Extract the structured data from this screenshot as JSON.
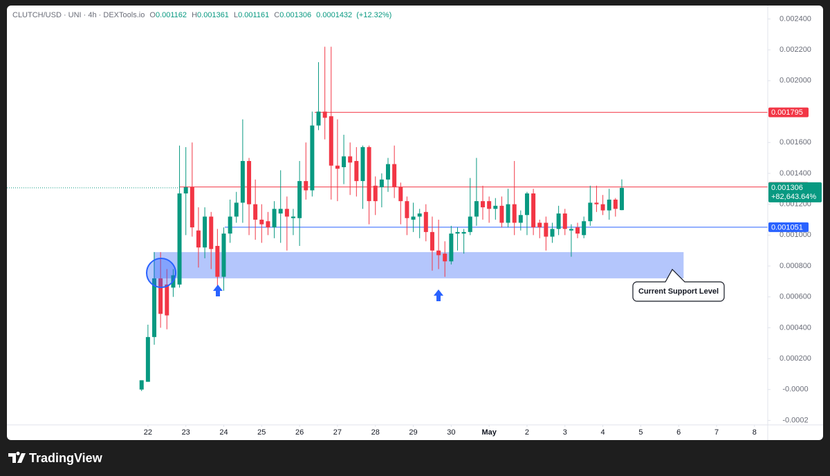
{
  "chart_data": {
    "type": "candlestick",
    "title": "CLUTCH/USD · UNI · 4h · DEXTools.io",
    "header": {
      "o_label": "O",
      "o": "0.001162",
      "h_label": "H",
      "h": "0.001361",
      "l_label": "L",
      "l": "0.001161",
      "c_label": "C",
      "c": "0.001306",
      "change": "0.0001432",
      "change_pct": "(+12.32%)"
    },
    "up_color": "#089981",
    "down_color": "#f23645",
    "grid": false,
    "x": [
      21.833,
      22,
      22.167,
      22.333,
      22.5,
      22.667,
      22.833,
      23,
      23.167,
      23.333,
      23.5,
      23.667,
      23.833,
      24,
      24.167,
      24.333,
      24.5,
      24.667,
      24.833,
      25,
      25.167,
      25.333,
      25.5,
      25.667,
      25.833,
      26,
      26.167,
      26.333,
      26.5,
      26.667,
      26.833,
      27,
      27.167,
      27.333,
      27.5,
      27.667,
      27.833,
      28,
      28.167,
      28.333,
      28.5,
      28.667,
      28.833,
      29,
      29.167,
      29.333,
      29.5,
      29.667,
      29.833,
      30,
      30.167,
      30.333,
      30.5,
      30.667,
      30.833,
      31,
      31.167,
      31.333,
      31.5,
      31.667,
      31.833,
      32,
      32.167,
      32.333,
      32.5,
      32.667,
      32.833,
      33,
      33.167,
      33.333,
      33.5,
      33.667,
      33.833,
      34,
      34.167,
      34.333,
      34.5
    ],
    "open": [
      0,
      5e-05,
      0.00034,
      0.00072,
      0.00068,
      0.00066,
      0.00068,
      0.00127,
      0.00131,
      0.00103,
      0.00092,
      0.00112,
      0.00093,
      0.00073,
      0.00101,
      0.00112,
      0.00121,
      0.00148,
      0.0012,
      0.0011,
      0.00109,
      0.00105,
      0.00114,
      0.00117,
      0.00111,
      0.00111,
      0.00135,
      0.00129,
      0.00171,
      0.0018,
      0.00177,
      0.00145,
      0.00144,
      0.00151,
      0.00148,
      0.00135,
      0.00157,
      0.00132,
      0.00131,
      0.00136,
      0.00146,
      0.00131,
      0.00122,
      0.0011,
      0.00112,
      0.00115,
      0.00102,
      0.0009,
      0.00088,
      0.00083,
      0.00101,
      0.00101,
      0.00102,
      0.00112,
      0.00122,
      0.00122,
      0.00117,
      0.00119,
      0.00108,
      0.0012,
      0.00108,
      0.00113,
      0.00127,
      0.00108,
      0.00108,
      0.00099,
      0.00104,
      0.00114,
      0.00103,
      0.00105,
      0.001,
      0.00109,
      0.00121,
      0.0012,
      0.00116,
      0.00123,
      0.001162
    ],
    "high": [
      6e-05,
      0.00042,
      0.00089,
      0.00089,
      0.00078,
      0.00078,
      0.00158,
      0.00157,
      0.0016,
      0.00118,
      0.00118,
      0.00115,
      0.00104,
      0.00105,
      0.00123,
      0.00128,
      0.00175,
      0.0015,
      0.00136,
      0.0012,
      0.00115,
      0.00122,
      0.00142,
      0.00125,
      0.00117,
      0.00148,
      0.0016,
      0.0018,
      0.00212,
      0.00222,
      0.00222,
      0.00175,
      0.00165,
      0.0016,
      0.00157,
      0.00158,
      0.00158,
      0.00138,
      0.0014,
      0.0015,
      0.00158,
      0.00134,
      0.00125,
      0.00121,
      0.00117,
      0.0012,
      0.00112,
      0.0011,
      0.00096,
      0.00106,
      0.00105,
      0.00104,
      0.00137,
      0.0015,
      0.00132,
      0.00125,
      0.00124,
      0.00125,
      0.0013,
      0.00148,
      0.00116,
      0.00128,
      0.0013,
      0.0011,
      0.00112,
      0.00108,
      0.00119,
      0.00117,
      0.00107,
      0.00108,
      0.00112,
      0.00132,
      0.00132,
      0.00126,
      0.0013,
      0.00124,
      0.001361
    ],
    "low": [
      -1e-05,
      5e-05,
      0.00029,
      0.0004,
      0.00039,
      0.0006,
      0.00066,
      0.001,
      0.00099,
      0.00079,
      0.00085,
      0.00078,
      0.00063,
      0.00064,
      0.00095,
      0.00108,
      0.00108,
      0.001,
      0.00097,
      0.00095,
      0.001,
      0.00098,
      0.00095,
      0.0009,
      0.001,
      0.00093,
      0.00123,
      0.00125,
      0.00168,
      0.00162,
      0.00123,
      0.00122,
      0.00133,
      0.00126,
      0.00125,
      0.00117,
      0.00107,
      0.00113,
      0.00118,
      0.00128,
      0.00124,
      0.00107,
      0.001,
      0.00102,
      0.00098,
      0.00096,
      0.00077,
      0.00078,
      0.00073,
      0.00081,
      0.0009,
      0.00088,
      0.001,
      0.00106,
      0.0011,
      0.00108,
      0.0011,
      0.00105,
      0.00105,
      0.001,
      0.00103,
      0.001,
      0.001,
      0.00098,
      0.0009,
      0.00095,
      0.001,
      0.001,
      0.00086,
      0.00098,
      0.00098,
      0.00106,
      0.00115,
      0.00113,
      0.0011,
      0.00112,
      0.001161
    ],
    "close": [
      6e-05,
      0.00034,
      0.00072,
      0.00049,
      0.00048,
      0.00074,
      0.00127,
      0.00131,
      0.00105,
      0.00092,
      0.00112,
      0.00091,
      0.00073,
      0.00101,
      0.00112,
      0.00121,
      0.00148,
      0.0012,
      0.0011,
      0.00107,
      0.00105,
      0.00117,
      0.00117,
      0.00112,
      0.00112,
      0.00135,
      0.00129,
      0.00171,
      0.0018,
      0.00176,
      0.00145,
      0.00143,
      0.00151,
      0.00147,
      0.00135,
      0.00157,
      0.00122,
      0.00122,
      0.00136,
      0.00146,
      0.00131,
      0.00122,
      0.00111,
      0.00112,
      0.00114,
      0.00102,
      0.0009,
      0.00087,
      0.00083,
      0.00101,
      0.00102,
      0.00102,
      0.00112,
      0.00122,
      0.00118,
      0.00117,
      0.00119,
      0.00108,
      0.0012,
      0.00108,
      0.00113,
      0.00127,
      0.00105,
      0.00105,
      0.00099,
      0.00104,
      0.00114,
      0.00104,
      0.00104,
      0.00101,
      0.00109,
      0.00121,
      0.0012,
      0.00116,
      0.00123,
      0.00117,
      0.001306
    ],
    "xlim": [
      18.28,
      38.35
    ],
    "xticks": [
      22,
      23,
      24,
      25,
      26,
      27,
      28,
      29,
      30,
      {
        "value": 31,
        "label": "May"
      },
      {
        "value": 32,
        "label": "2"
      },
      {
        "value": 33,
        "label": "3"
      },
      {
        "value": 34,
        "label": "4"
      },
      {
        "value": 35,
        "label": "5"
      },
      {
        "value": 36,
        "label": "6"
      },
      {
        "value": 37,
        "label": "7"
      },
      {
        "value": 38,
        "label": "8"
      }
    ],
    "ylim": [
      -0.000229,
      0.002478
    ],
    "yticks": [
      {
        "value": 0.0024,
        "label": "0.002400"
      },
      {
        "value": 0.0022,
        "label": "0.002200"
      },
      {
        "value": 0.002,
        "label": "0.002000"
      },
      {
        "value": 0.0016,
        "label": "0.001600"
      },
      {
        "value": 0.0014,
        "label": "0.001400"
      },
      {
        "value": 0.0012,
        "label": "0.001200"
      },
      {
        "value": 0.001,
        "label": "0.001000"
      },
      {
        "value": 0.0008,
        "label": "0.000800"
      },
      {
        "value": 0.0006,
        "label": "0.000600"
      },
      {
        "value": 0.0004,
        "label": "0.000400"
      },
      {
        "value": 0.0002,
        "label": "0.000200"
      },
      {
        "value": 0,
        "label": "-0.0000"
      },
      -0.0002
    ],
    "hlines": [
      {
        "value": 0.001795,
        "color": "#f23645"
      },
      {
        "value": 0.001312,
        "color": "#f23645"
      },
      {
        "value": 0.001051,
        "color": "#2962ff"
      }
    ],
    "last_price": {
      "value": 0.001306,
      "change_label": "+82,643.64%",
      "color": "#089981"
    },
    "zone": {
      "low": 0.00072,
      "high": 0.00089,
      "x_start": 22.15,
      "x_end": 36.13,
      "color": "#b4c6fc"
    },
    "annotation": "Current Support Level"
  },
  "footer": {
    "brand": "TradingView"
  }
}
